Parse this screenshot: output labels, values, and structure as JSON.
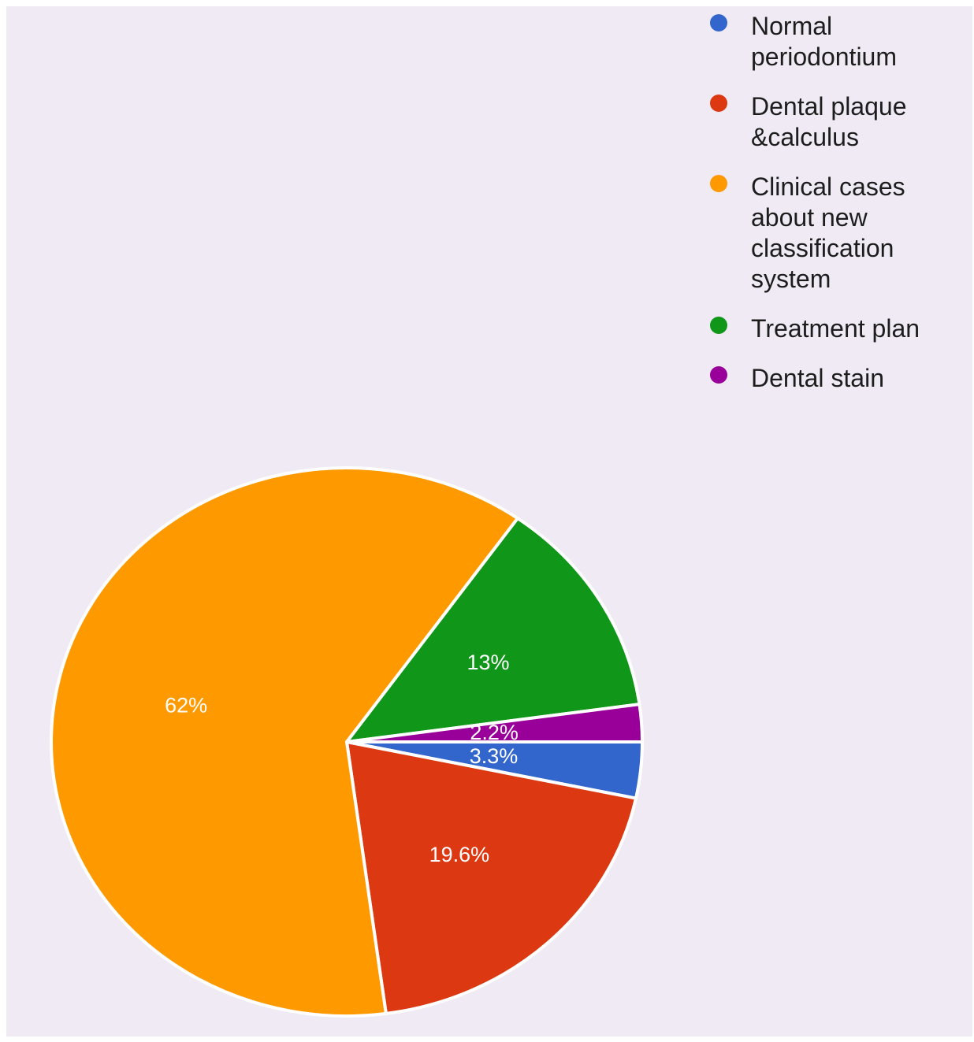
{
  "chart_data": {
    "type": "pie",
    "title": "",
    "legend_position": "top-right",
    "slices": [
      {
        "name": "Normal periodontium",
        "value": 3.3,
        "label": "3.3%",
        "color": "#3366cc",
        "legend_lines": [
          "Normal",
          "periodontium"
        ]
      },
      {
        "name": "Dental plaque &calculus",
        "value": 19.6,
        "label": "19.6%",
        "color": "#dc3912",
        "legend_lines": [
          "Dental plaque",
          "&calculus"
        ]
      },
      {
        "name": "Clinical cases about new classification system",
        "value": 62,
        "label": "62%",
        "color": "#ff9900",
        "legend_lines": [
          "Clinical cases",
          "about new",
          "classification",
          "system"
        ]
      },
      {
        "name": "Treatment plan",
        "value": 13,
        "label": "13%",
        "color": "#109618",
        "legend_lines": [
          "Treatment plan"
        ]
      },
      {
        "name": "Dental stain",
        "value": 2.2,
        "label": "2.2%",
        "color": "#990099",
        "legend_lines": [
          "Dental stain"
        ]
      }
    ]
  }
}
